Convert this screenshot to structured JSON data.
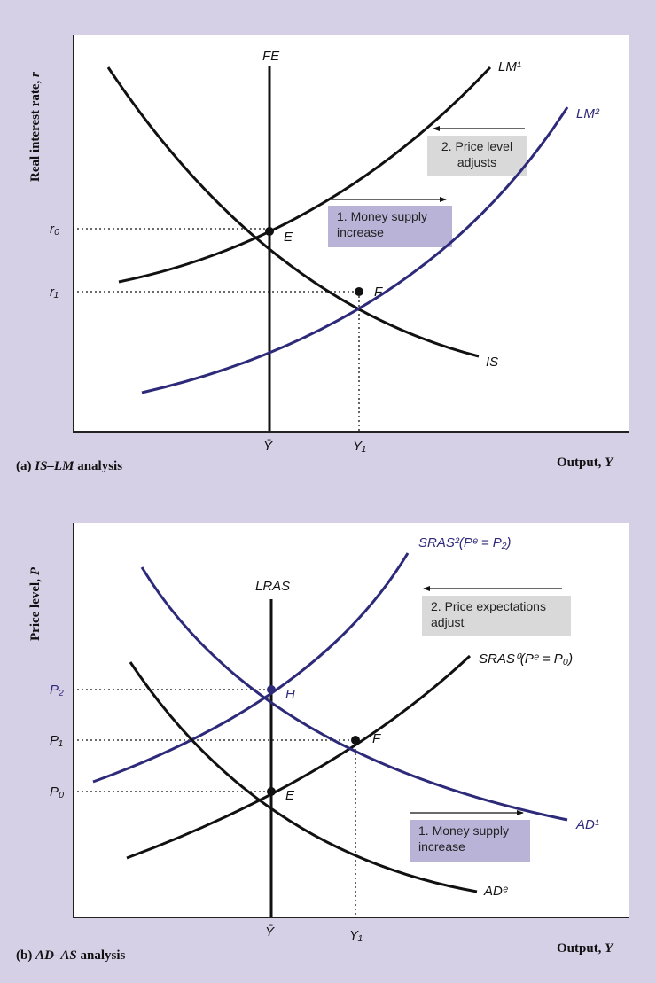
{
  "chart_data": [
    {
      "type": "line",
      "panel": "a",
      "caption": {
        "prefix": "(a) ",
        "italic": "IS–LM",
        "suffix": " analysis"
      },
      "xlabel": {
        "text": "Output, ",
        "var": "Y"
      },
      "ylabel": {
        "text": "Real interest rate, ",
        "var": "r"
      },
      "ticks_x": [
        "Ȳ",
        "Y₁"
      ],
      "ticks_y": [
        "r₀",
        "r₁"
      ],
      "series": [
        {
          "name": "FE",
          "color": "#111111"
        },
        {
          "name": "LM¹",
          "color": "#111111"
        },
        {
          "name": "LM²",
          "color": "#2e2a7a"
        },
        {
          "name": "IS",
          "color": "#111111"
        }
      ],
      "points": [
        {
          "label": "E",
          "color": "#111111"
        },
        {
          "label": "F",
          "color": "#111111"
        }
      ],
      "annotations": [
        {
          "id": "note-a1",
          "text": "1. Money supply increase",
          "box_color": "#b9b3d8",
          "arrow": "right"
        },
        {
          "id": "note-a2",
          "text": "2. Price level adjusts",
          "box_color": "#d9d9d9",
          "arrow": "left"
        }
      ]
    },
    {
      "type": "line",
      "panel": "b",
      "caption": {
        "prefix": "(b) ",
        "italic": "AD–AS",
        "suffix": " analysis"
      },
      "xlabel": {
        "text": "Output, ",
        "var": "Y"
      },
      "ylabel": {
        "text": "Price level, ",
        "var": "P"
      },
      "ticks_x": [
        "Ȳ",
        "Y₁"
      ],
      "ticks_y": [
        {
          "label": "P₂",
          "color": "#2e2a7a"
        },
        {
          "label": "P₁",
          "color": "#111111"
        },
        {
          "label": "P₀",
          "color": "#111111"
        }
      ],
      "series": [
        {
          "name": "LRAS",
          "color": "#111111"
        },
        {
          "name": "SRAS²(Pᵉ = P₂)",
          "color": "#2e2a7a"
        },
        {
          "name": "SRAS⁰(Pᵉ = P₀)",
          "color": "#111111"
        },
        {
          "name": "AD¹",
          "color": "#2e2a7a"
        },
        {
          "name": "ADᵉ",
          "color": "#111111"
        }
      ],
      "points": [
        {
          "label": "H",
          "color": "#2e2a7a"
        },
        {
          "label": "F",
          "color": "#111111"
        },
        {
          "label": "E",
          "color": "#111111"
        }
      ],
      "annotations": [
        {
          "id": "note-b1",
          "text": "1. Money supply increase",
          "box_color": "#b9b3d8",
          "arrow": "right"
        },
        {
          "id": "note-b2",
          "text": "2. Price expectations adjust",
          "box_color": "#d9d9d9",
          "arrow": "left"
        }
      ]
    }
  ]
}
